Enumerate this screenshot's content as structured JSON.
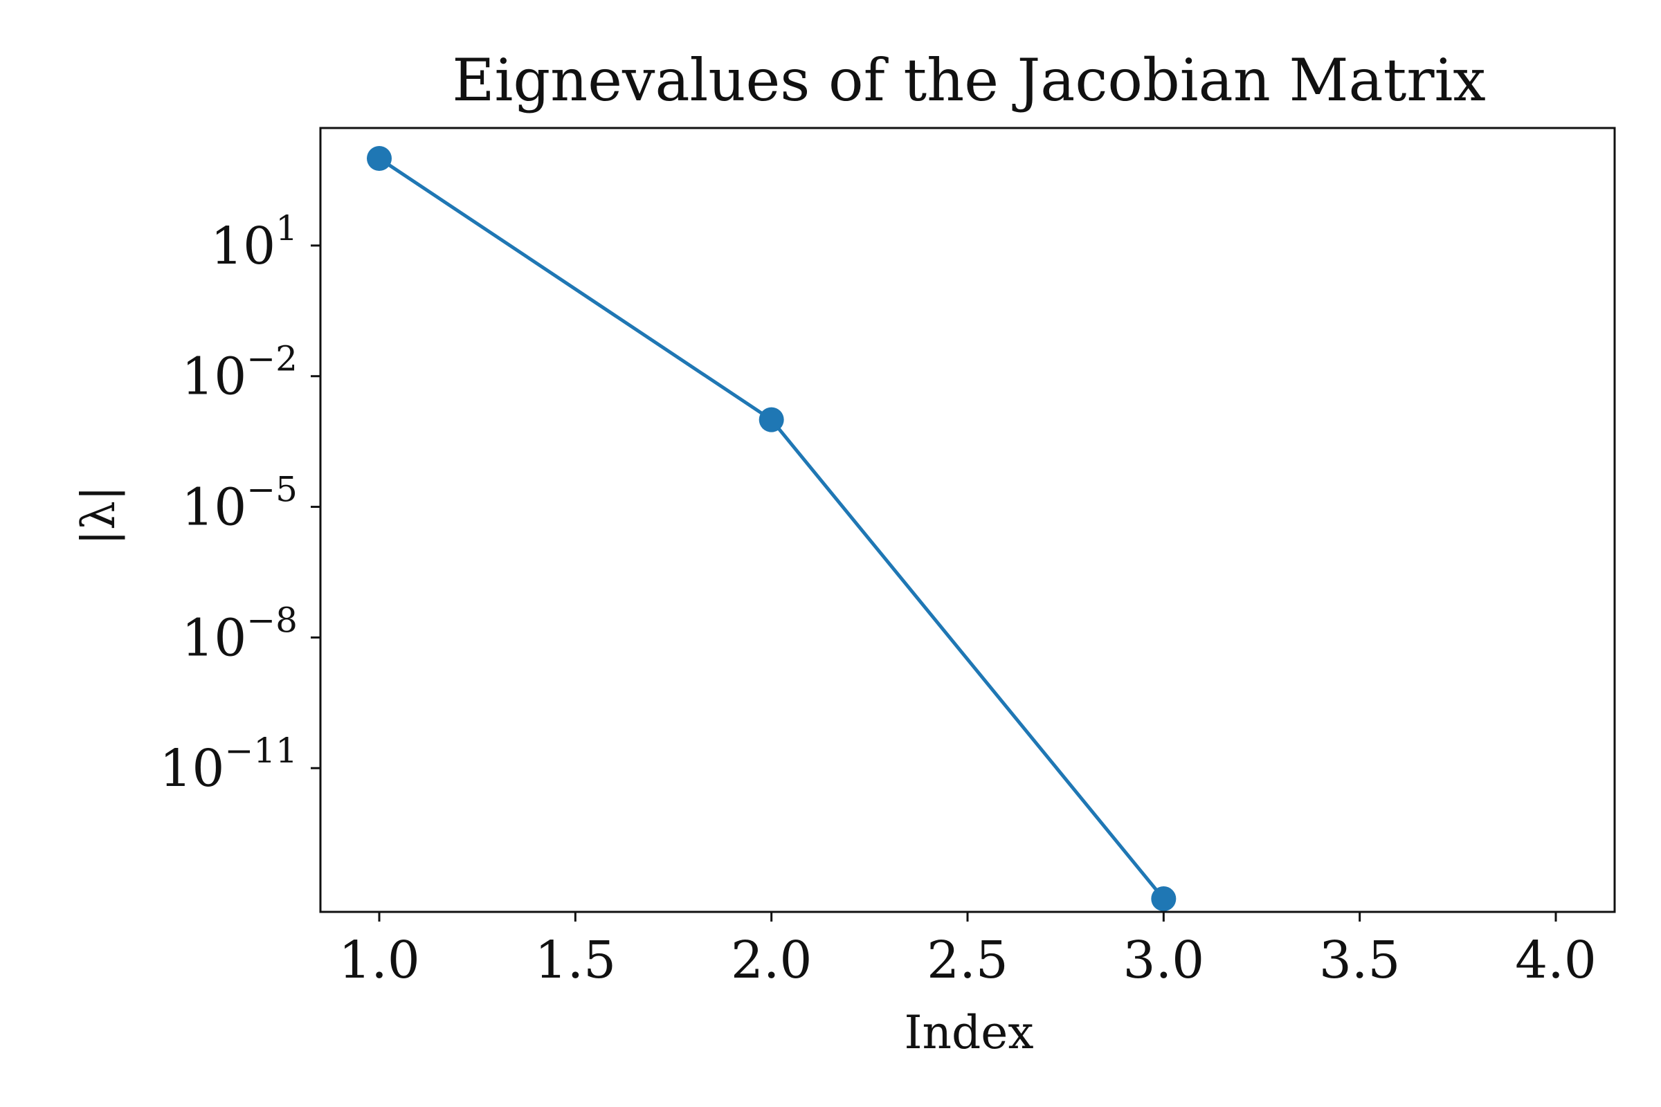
{
  "chart_data": {
    "type": "line",
    "title": "Eignevalues of the Jacobian Matrix",
    "xlabel": "Index",
    "ylabel": "|λ|",
    "y_scale": "log",
    "x": [
      1,
      2,
      3,
      4
    ],
    "series": [
      {
        "values": [
          1000,
          0.001,
          1e-14,
          0
        ],
        "color": "#1f77b4",
        "marker": "circle"
      }
    ],
    "xlim": [
      0.85,
      4.15
    ],
    "ylim": [
      5e-15,
      5000
    ],
    "x_ticks": [
      1.0,
      1.5,
      2.0,
      2.5,
      3.0,
      3.5,
      4.0
    ],
    "x_tick_labels": [
      "1.0",
      "1.5",
      "2.0",
      "2.5",
      "3.0",
      "3.5",
      "4.0"
    ],
    "y_ticks": [
      10,
      0.01,
      1e-05,
      1e-08,
      1e-11
    ],
    "y_tick_labels": [
      {
        "base": "10",
        "exp": "1"
      },
      {
        "base": "10",
        "exp": "−2"
      },
      {
        "base": "10",
        "exp": "−5"
      },
      {
        "base": "10",
        "exp": "−8"
      },
      {
        "base": "10",
        "exp": "−11"
      }
    ],
    "grid": false,
    "legend": "none"
  }
}
